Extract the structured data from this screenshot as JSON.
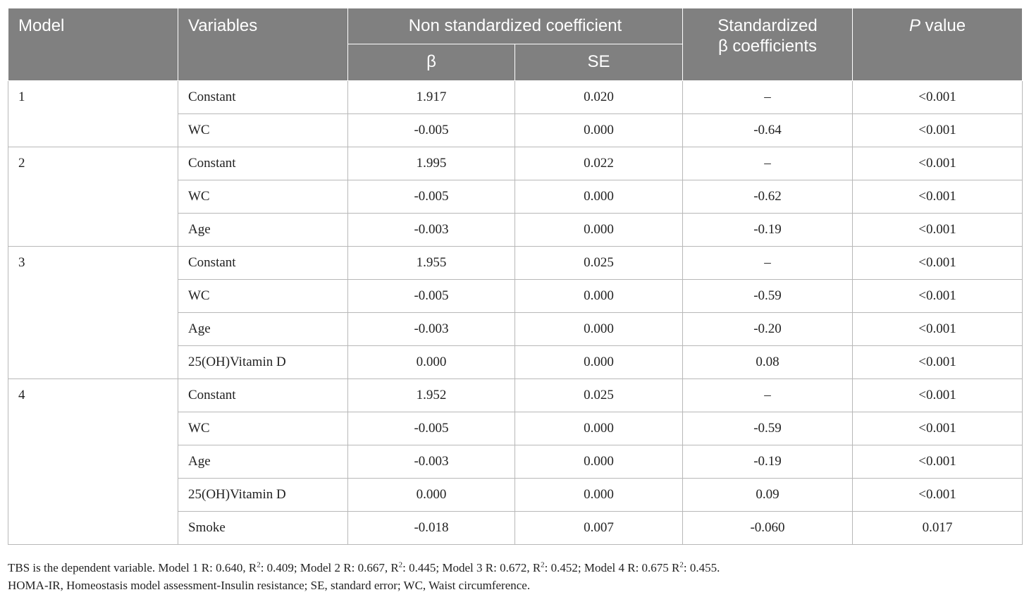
{
  "header": {
    "model": "Model",
    "variables": "Variables",
    "non_std": "Non standardized coefficient",
    "std_line1": "Standardized",
    "std_line2": "β coefficients",
    "p_italic": "P",
    "p_rest": " value",
    "beta": "β",
    "se": "SE"
  },
  "models": [
    {
      "label": "1",
      "rows": [
        {
          "variable": "Constant",
          "beta": "1.917",
          "se": "0.020",
          "std": "–",
          "p": "<0.001"
        },
        {
          "variable": "WC",
          "beta": "-0.005",
          "se": "0.000",
          "std": "-0.64",
          "p": "<0.001"
        }
      ]
    },
    {
      "label": "2",
      "rows": [
        {
          "variable": "Constant",
          "beta": "1.995",
          "se": "0.022",
          "std": "–",
          "p": "<0.001"
        },
        {
          "variable": "WC",
          "beta": "-0.005",
          "se": "0.000",
          "std": "-0.62",
          "p": "<0.001"
        },
        {
          "variable": "Age",
          "beta": "-0.003",
          "se": "0.000",
          "std": "-0.19",
          "p": "<0.001"
        }
      ]
    },
    {
      "label": "3",
      "rows": [
        {
          "variable": "Constant",
          "beta": "1.955",
          "se": "0.025",
          "std": "–",
          "p": "<0.001"
        },
        {
          "variable": "WC",
          "beta": "-0.005",
          "se": "0.000",
          "std": "-0.59",
          "p": "<0.001"
        },
        {
          "variable": "Age",
          "beta": "-0.003",
          "se": "0.000",
          "std": "-0.20",
          "p": "<0.001"
        },
        {
          "variable": "25(OH)Vitamin D",
          "beta": "0.000",
          "se": "0.000",
          "std": "0.08",
          "p": "<0.001"
        }
      ]
    },
    {
      "label": "4",
      "rows": [
        {
          "variable": "Constant",
          "beta": "1.952",
          "se": "0.025",
          "std": "–",
          "p": "<0.001"
        },
        {
          "variable": "WC",
          "beta": "-0.005",
          "se": "0.000",
          "std": "-0.59",
          "p": "<0.001"
        },
        {
          "variable": "Age",
          "beta": "-0.003",
          "se": "0.000",
          "std": "-0.19",
          "p": "<0.001"
        },
        {
          "variable": "25(OH)Vitamin D",
          "beta": "0.000",
          "se": "0.000",
          "std": "0.09",
          "p": "<0.001"
        },
        {
          "variable": "Smoke",
          "beta": "-0.018",
          "se": "0.007",
          "std": "-0.060",
          "p": "0.017"
        }
      ]
    }
  ],
  "notes": {
    "line1_parts": [
      "TBS is the dependent variable. Model 1 R: 0.640, R",
      "2",
      ": 0.409; Model 2 R: 0.667, R",
      "2",
      ": 0.445; Model 3 R: 0.672, R",
      "2",
      ": 0.452; Model 4 R: 0.675 R",
      "2",
      ": 0.455."
    ],
    "line2": "HOMA-IR, Homeostasis model assessment-Insulin resistance; SE, standard error; WC, Waist circumference."
  },
  "colors": {
    "header_bg": "#808080",
    "header_text": "#ffffff",
    "border": "#b8b8b8"
  }
}
